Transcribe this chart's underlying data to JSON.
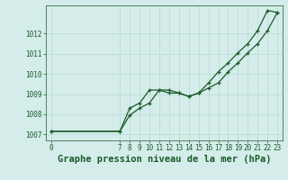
{
  "xlabel": "Graphe pression niveau de la mer (hPa)",
  "bg_color": "#d4ecea",
  "grid_color": "#b8d8d4",
  "line_color": "#1a5c28",
  "x_series1": [
    0,
    7,
    8,
    9,
    10,
    11,
    12,
    13,
    14,
    15,
    16,
    17,
    18,
    19,
    20,
    21,
    22,
    23
  ],
  "y_series1": [
    1007.15,
    1007.15,
    1007.95,
    1008.3,
    1008.55,
    1009.2,
    1009.2,
    1009.05,
    1008.88,
    1009.05,
    1009.55,
    1010.1,
    1010.55,
    1011.05,
    1011.5,
    1012.15,
    1013.15,
    1013.05
  ],
  "x_series2": [
    0,
    7,
    8,
    9,
    10,
    11,
    12,
    13,
    14,
    15,
    16,
    17,
    18,
    19,
    20,
    21,
    22,
    23
  ],
  "y_series2": [
    1007.15,
    1007.15,
    1008.3,
    1008.55,
    1009.2,
    1009.2,
    1009.05,
    1009.05,
    1008.88,
    1009.05,
    1009.3,
    1009.55,
    1010.1,
    1010.55,
    1011.05,
    1011.5,
    1012.15,
    1013.05
  ],
  "xlim": [
    -0.5,
    23.5
  ],
  "ylim": [
    1006.7,
    1013.4
  ],
  "yticks": [
    1007,
    1008,
    1009,
    1010,
    1011,
    1012
  ],
  "xticks": [
    0,
    7,
    8,
    9,
    10,
    11,
    12,
    13,
    14,
    15,
    16,
    17,
    18,
    19,
    20,
    21,
    22,
    23
  ],
  "xtick_labels": [
    "0",
    "7",
    "8",
    "9",
    "10",
    "11",
    "12",
    "13",
    "14",
    "15",
    "16",
    "17",
    "18",
    "19",
    "20",
    "21",
    "22",
    "23"
  ],
  "xlabel_fontsize": 7.5,
  "tick_fontsize": 5.5
}
